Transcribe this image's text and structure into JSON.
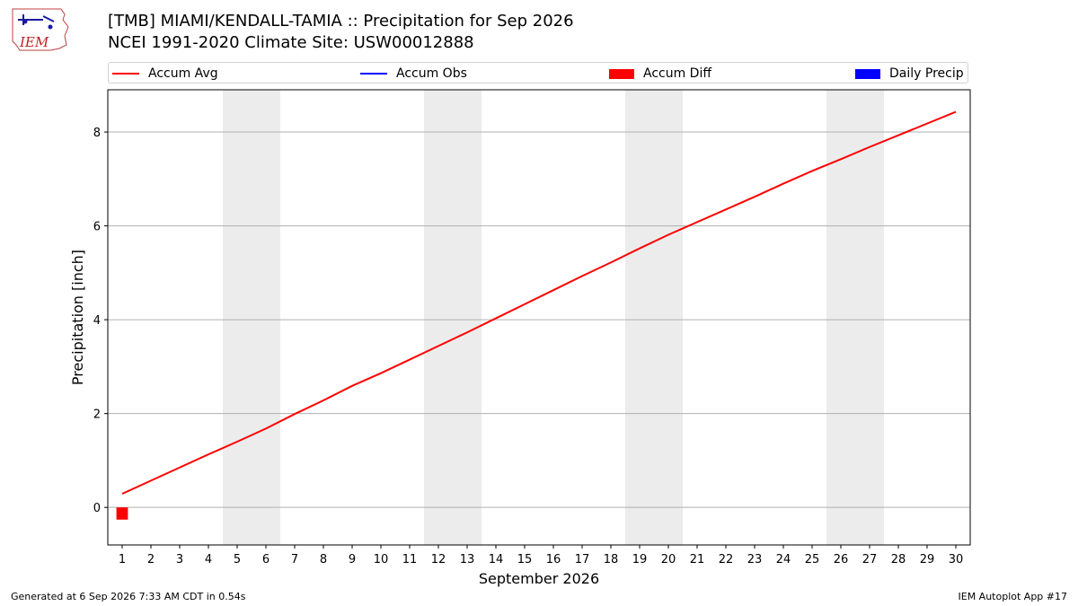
{
  "header": {
    "title_line1": "[TMB] MIAMI/KENDALL-TAMIA :: Precipitation for Sep 2026",
    "title_line2": "NCEI 1991-2020 Climate Site: USW00012888",
    "logo_text": "IEM"
  },
  "legend": {
    "items": [
      {
        "label": "Accum Avg",
        "kind": "line",
        "color": "#ff0000"
      },
      {
        "label": "Accum Obs",
        "kind": "line",
        "color": "#0000ff"
      },
      {
        "label": "Accum Diff",
        "kind": "patch",
        "color": "#ff0000"
      },
      {
        "label": "Daily Precip",
        "kind": "patch",
        "color": "#0000ff"
      }
    ],
    "placement": "top"
  },
  "chart_data": {
    "type": "line",
    "title": "[TMB] MIAMI/KENDALL-TAMIA :: Precipitation for Sep 2026",
    "xlabel": "September 2026",
    "ylabel": "Precipitation [inch]",
    "x": [
      1,
      2,
      3,
      4,
      5,
      6,
      7,
      8,
      9,
      10,
      11,
      12,
      13,
      14,
      15,
      16,
      17,
      18,
      19,
      20,
      21,
      22,
      23,
      24,
      25,
      26,
      27,
      28,
      29,
      30
    ],
    "xlim": [
      0.5,
      30.5
    ],
    "ylim": [
      -0.8,
      8.9
    ],
    "yticks": [
      0,
      2,
      4,
      6,
      8
    ],
    "grid": "y",
    "weekend_bands": [
      [
        5,
        6
      ],
      [
        12,
        13
      ],
      [
        19,
        20
      ],
      [
        26,
        27
      ]
    ],
    "series": [
      {
        "name": "Accum Avg",
        "type": "line",
        "color": "#ff0000",
        "values": [
          0.29,
          0.57,
          0.85,
          1.13,
          1.4,
          1.68,
          1.99,
          2.28,
          2.59,
          2.86,
          3.15,
          3.44,
          3.73,
          4.03,
          4.33,
          4.63,
          4.93,
          5.22,
          5.52,
          5.81,
          6.08,
          6.35,
          6.62,
          6.9,
          7.17,
          7.42,
          7.68,
          7.93,
          8.18,
          8.43
        ]
      },
      {
        "name": "Accum Diff",
        "type": "bar",
        "color": "#ff0000",
        "x": [
          1
        ],
        "values": [
          -0.26
        ]
      }
    ]
  },
  "footer": {
    "left": "Generated at 6 Sep 2026 7:33 AM CDT in 0.54s",
    "right": "IEM Autoplot App #17"
  }
}
